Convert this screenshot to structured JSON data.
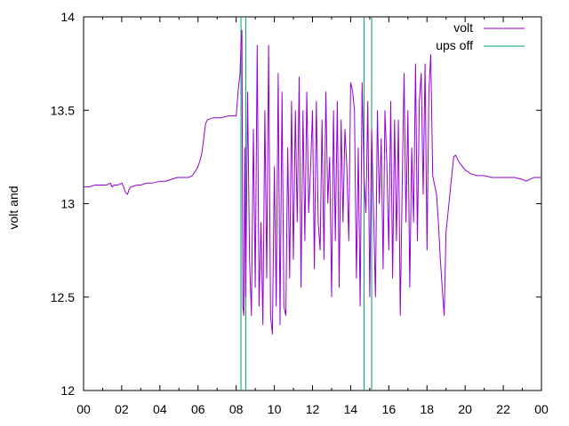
{
  "chart_data": {
    "type": "line",
    "ylabel": "volt and",
    "x_axis_time_of_day": true,
    "x_tick_labels": [
      "00",
      "02",
      "04",
      "06",
      "08",
      "10",
      "12",
      "14",
      "16",
      "18",
      "20",
      "22",
      "00"
    ],
    "xlim_hours": [
      0,
      24
    ],
    "ylim": [
      12,
      14
    ],
    "y_ticks": [
      12,
      12.5,
      13,
      13.5,
      14
    ],
    "y_tick_labels": [
      "12",
      "12.5",
      "13",
      "13.5",
      "14"
    ],
    "grid": false,
    "legend_position": "top-right",
    "series": [
      {
        "name": "volt",
        "color": "#9400d3",
        "x_hours": [
          0,
          0.3,
          0.6,
          0.9,
          1.2,
          1.4,
          1.5,
          1.6,
          1.8,
          2.0,
          2.1,
          2.2,
          2.3,
          2.4,
          2.5,
          2.8,
          3.0,
          3.3,
          3.6,
          4.0,
          4.3,
          4.6,
          4.9,
          5.2,
          5.5,
          5.7,
          5.9,
          6.0,
          6.1,
          6.2,
          6.3,
          6.4,
          6.5,
          6.8,
          7.2,
          7.6,
          8.0,
          8.1,
          8.2,
          8.25,
          8.3,
          8.35,
          8.4,
          8.45,
          8.5,
          8.6,
          8.7,
          8.8,
          8.9,
          9.0,
          9.1,
          9.2,
          9.3,
          9.4,
          9.5,
          9.6,
          9.7,
          9.8,
          9.9,
          10.0,
          10.1,
          10.2,
          10.3,
          10.4,
          10.5,
          10.6,
          10.7,
          10.8,
          10.9,
          11.0,
          11.1,
          11.2,
          11.3,
          11.4,
          11.5,
          11.6,
          11.7,
          11.8,
          11.9,
          12.0,
          12.1,
          12.2,
          12.3,
          12.4,
          12.5,
          12.6,
          12.7,
          12.8,
          12.9,
          13.0,
          13.1,
          13.2,
          13.3,
          13.4,
          13.5,
          13.6,
          13.7,
          13.8,
          13.9,
          14.0,
          14.1,
          14.2,
          14.3,
          14.4,
          14.5,
          14.6,
          14.7,
          14.8,
          14.9,
          15.0,
          15.1,
          15.2,
          15.3,
          15.4,
          15.5,
          15.6,
          15.7,
          15.8,
          15.9,
          16.0,
          16.1,
          16.2,
          16.3,
          16.4,
          16.5,
          16.6,
          16.7,
          16.8,
          16.9,
          17.0,
          17.1,
          17.2,
          17.3,
          17.4,
          17.5,
          17.6,
          17.7,
          17.8,
          17.9,
          18.0,
          18.1,
          18.2,
          18.3,
          18.4,
          18.5,
          18.6,
          18.7,
          18.8,
          18.9,
          19.0,
          19.1,
          19.2,
          19.3,
          19.4,
          19.5,
          19.7,
          20.0,
          20.3,
          20.6,
          21.0,
          21.4,
          21.8,
          22.2,
          22.6,
          23.0,
          23.2,
          23.4,
          23.6,
          24.0
        ],
        "y": [
          13.09,
          13.09,
          13.1,
          13.1,
          13.1,
          13.11,
          13.09,
          13.1,
          13.1,
          13.11,
          13.09,
          13.06,
          13.05,
          13.08,
          13.09,
          13.1,
          13.1,
          13.11,
          13.11,
          13.12,
          13.12,
          13.13,
          13.14,
          13.14,
          13.14,
          13.15,
          13.18,
          13.2,
          13.23,
          13.27,
          13.35,
          13.43,
          13.45,
          13.46,
          13.46,
          13.47,
          13.47,
          13.6,
          13.7,
          13.85,
          13.93,
          12.45,
          12.4,
          13.3,
          12.5,
          13.6,
          12.7,
          12.4,
          13.4,
          12.55,
          13.85,
          12.45,
          12.9,
          12.35,
          13.5,
          12.6,
          13.85,
          12.4,
          12.3,
          13.2,
          12.45,
          13.7,
          12.35,
          13.6,
          12.45,
          12.4,
          13.3,
          12.6,
          13.55,
          12.7,
          13.5,
          12.9,
          13.68,
          12.55,
          13.5,
          12.8,
          13.6,
          12.95,
          13.2,
          13.5,
          12.65,
          13.55,
          12.9,
          12.75,
          13.45,
          12.7,
          13.6,
          13.0,
          13.25,
          12.5,
          13.5,
          12.8,
          13.55,
          12.55,
          13.45,
          12.9,
          13.4,
          13.2,
          12.8,
          13.65,
          13.6,
          13.5,
          12.6,
          13.3,
          12.45,
          13.65,
          13.15,
          12.95,
          13.55,
          12.5,
          13.4,
          12.95,
          12.5,
          13.5,
          13.0,
          13.35,
          12.65,
          13.5,
          13.2,
          12.75,
          13.55,
          12.6,
          13.45,
          12.8,
          13.45,
          12.4,
          13.1,
          13.7,
          12.9,
          13.5,
          12.55,
          13.3,
          12.9,
          13.75,
          12.8,
          13.55,
          13.7,
          13.05,
          13.75,
          12.75,
          13.6,
          13.8,
          13.15,
          13.1,
          13.05,
          12.9,
          12.7,
          12.55,
          12.4,
          12.85,
          12.95,
          13.05,
          13.15,
          13.25,
          13.26,
          13.22,
          13.18,
          13.16,
          13.15,
          13.15,
          13.14,
          13.14,
          13.14,
          13.14,
          13.13,
          13.12,
          13.13,
          13.14,
          13.14
        ]
      },
      {
        "name": "ups off",
        "color": "#009e73",
        "step_segments_hours": [
          {
            "start": 8.25,
            "end": 8.5
          },
          {
            "start": 14.7,
            "end": 15.1
          }
        ],
        "y_off": 12,
        "y_on": 14
      }
    ]
  }
}
